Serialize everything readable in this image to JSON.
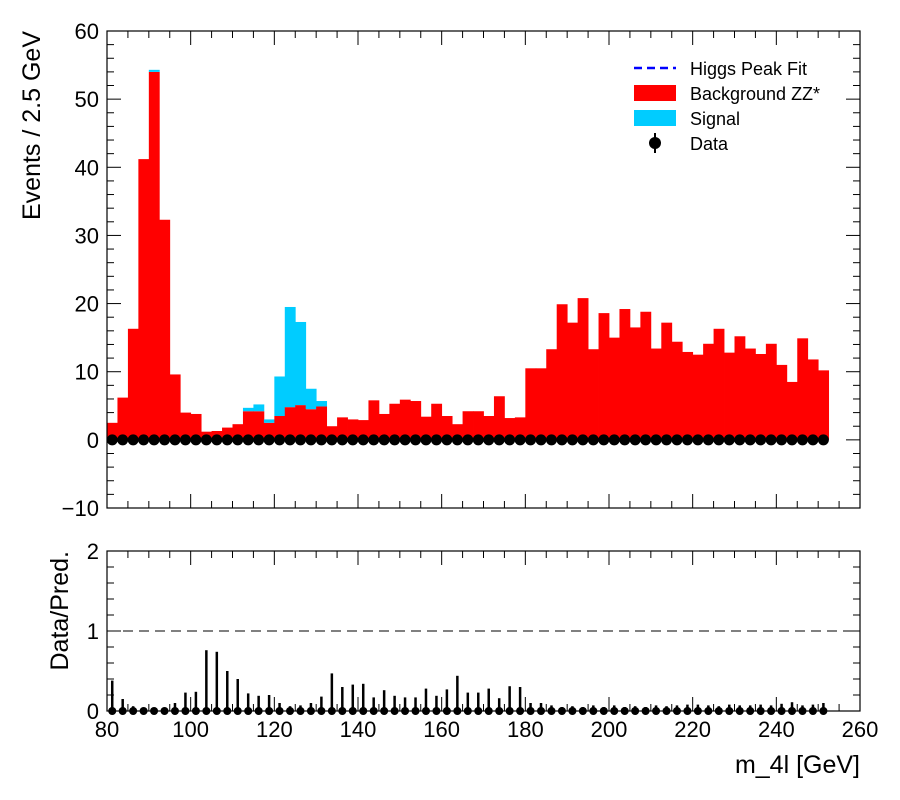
{
  "chart_data": [
    {
      "type": "bar",
      "panel": "main",
      "xlabel": "",
      "ylabel": "Events / 2.5 GeV",
      "xlim": [
        80,
        260
      ],
      "ylim": [
        -10,
        60
      ],
      "xticks": [
        80,
        100,
        120,
        140,
        160,
        180,
        200,
        220,
        240,
        260
      ],
      "yticks": [
        -10,
        0,
        10,
        20,
        30,
        40,
        50,
        60
      ],
      "bin_width": 2.5,
      "bin_start": 80,
      "legend_position": "top-right",
      "legend": [
        {
          "label": "Higgs Peak Fit",
          "kind": "dashed-line",
          "color": "#0000ff"
        },
        {
          "label": "Background ZZ*",
          "kind": "fill",
          "color": "#ff0000"
        },
        {
          "label": "Signal",
          "kind": "fill",
          "color": "#00ccff"
        },
        {
          "label": "Data",
          "kind": "marker",
          "color": "#000000"
        }
      ],
      "series": [
        {
          "name": "Background ZZ*",
          "color": "#ff0000",
          "stacked": true,
          "values": [
            2.5,
            6.2,
            16.3,
            41.2,
            54.0,
            32.3,
            9.6,
            4.0,
            3.8,
            1.2,
            1.3,
            1.8,
            2.3,
            4.2,
            4.2,
            2.5,
            3.5,
            4.8,
            5.1,
            4.5,
            4.9,
            2.0,
            3.3,
            3.0,
            2.9,
            5.8,
            3.8,
            5.3,
            5.9,
            5.7,
            3.4,
            5.3,
            3.5,
            2.3,
            4.2,
            4.2,
            3.5,
            6.4,
            3.2,
            3.3,
            10.5,
            10.5,
            13.3,
            19.9,
            17.2,
            20.8,
            13.3,
            18.6,
            15.0,
            19.2,
            16.5,
            18.8,
            13.4,
            17.2,
            14.4,
            12.9,
            12.5,
            14.1,
            16.3,
            12.8,
            15.2,
            13.4,
            12.6,
            14.1,
            11.0,
            8.5,
            14.9,
            11.8,
            10.2
          ]
        },
        {
          "name": "Signal",
          "color": "#00ccff",
          "stacked": true,
          "values": [
            0,
            0,
            0,
            0,
            0.3,
            0,
            0,
            0,
            0,
            0,
            0,
            0,
            0,
            0.5,
            1.0,
            0.5,
            5.8,
            14.7,
            12.2,
            3.0,
            0.8,
            0,
            0,
            0,
            0,
            0,
            0,
            0,
            0,
            0,
            0,
            0,
            0,
            0,
            0,
            0,
            0,
            0,
            0,
            0,
            0,
            0,
            0,
            0,
            0,
            0,
            0,
            0,
            0,
            0,
            0,
            0,
            0,
            0,
            0,
            0,
            0,
            0,
            0,
            0,
            0,
            0,
            0,
            0,
            0,
            0,
            0,
            0,
            0
          ]
        },
        {
          "name": "Data",
          "color": "#000000",
          "values": [
            0,
            0,
            0,
            0,
            0,
            0,
            0,
            0,
            0,
            0,
            0,
            0,
            0,
            0,
            0,
            0,
            0,
            0,
            0,
            0,
            0,
            0,
            0,
            0,
            0,
            0,
            0,
            0,
            0,
            0,
            0,
            0,
            0,
            0,
            0,
            0,
            0,
            0,
            0,
            0,
            0,
            0,
            0,
            0,
            0,
            0,
            0,
            0,
            0,
            0,
            0,
            0,
            0,
            0,
            0,
            0,
            0,
            0,
            0,
            0,
            0,
            0,
            0,
            0,
            0,
            0,
            0,
            0,
            0
          ]
        }
      ]
    },
    {
      "type": "scatter",
      "panel": "ratio",
      "xlabel": "m_4l [GeV]",
      "ylabel": "Data/Pred.",
      "xlim": [
        80,
        260
      ],
      "ylim": [
        0,
        2
      ],
      "xticks": [
        80,
        100,
        120,
        140,
        160,
        180,
        200,
        220,
        240,
        260
      ],
      "yticks": [
        0,
        1,
        2
      ],
      "reference_line": 1,
      "series": [
        {
          "name": "Data/Pred.",
          "values": [
            0,
            0,
            0,
            0,
            0,
            0,
            0,
            0,
            0,
            0,
            0,
            0,
            0,
            0,
            0,
            0,
            0,
            0,
            0,
            0,
            0,
            0,
            0,
            0,
            0,
            0,
            0,
            0,
            0,
            0,
            0,
            0,
            0,
            0,
            0,
            0,
            0,
            0,
            0,
            0,
            0,
            0,
            0,
            0,
            0,
            0,
            0,
            0,
            0,
            0,
            0,
            0,
            0,
            0,
            0,
            0,
            0,
            0,
            0,
            0,
            0,
            0,
            0,
            0,
            0,
            0,
            0,
            0,
            0
          ],
          "errors": [
            0.38,
            0.15,
            0.06,
            0.03,
            0.02,
            0.03,
            0.1,
            0.23,
            0.24,
            0.76,
            0.74,
            0.5,
            0.4,
            0.22,
            0.19,
            0.2,
            0.1,
            0.06,
            0.07,
            0.1,
            0.18,
            0.47,
            0.3,
            0.33,
            0.34,
            0.17,
            0.26,
            0.19,
            0.17,
            0.17,
            0.28,
            0.19,
            0.27,
            0.44,
            0.23,
            0.23,
            0.28,
            0.16,
            0.31,
            0.3,
            0.1,
            0.1,
            0.07,
            0.05,
            0.06,
            0.05,
            0.07,
            0.05,
            0.07,
            0.05,
            0.06,
            0.05,
            0.07,
            0.06,
            0.07,
            0.08,
            0.08,
            0.07,
            0.06,
            0.08,
            0.07,
            0.07,
            0.08,
            0.07,
            0.09,
            0.11,
            0.07,
            0.08,
            0.1
          ]
        }
      ]
    }
  ]
}
